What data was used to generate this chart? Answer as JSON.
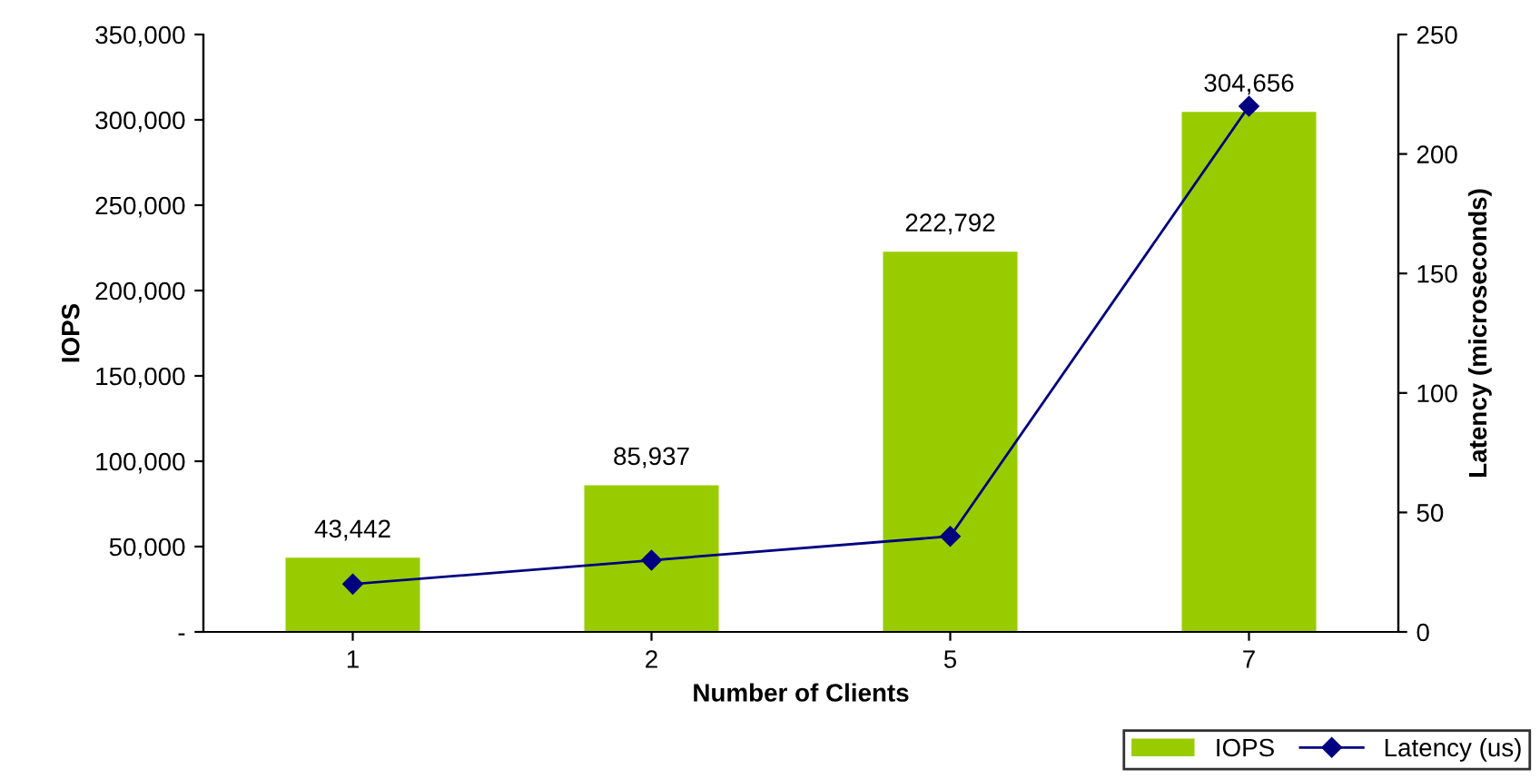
{
  "chart_data": {
    "type": "bar",
    "xlabel": "Number of Clients",
    "ylabel": "IOPS",
    "y2label": "Latency (microseconds)",
    "categories": [
      "1",
      "2",
      "5",
      "7"
    ],
    "series": [
      {
        "name": "IOPS",
        "color": "#99cc00",
        "values": [
          43442,
          85937,
          222792,
          304656
        ],
        "value_labels": [
          "43,442",
          "85,937",
          "222,792",
          "304,656"
        ]
      },
      {
        "name": "Latency (us)",
        "type": "line",
        "axis": "y2",
        "color": "#000080",
        "values": [
          20,
          30,
          40,
          220
        ],
        "marker": "diamond",
        "line_style": "solid"
      }
    ],
    "ylim": [
      0,
      350000
    ],
    "yticks": [
      {
        "value": 0,
        "label": "-"
      },
      {
        "value": 50000,
        "label": "50,000"
      },
      {
        "value": 100000,
        "label": "100,000"
      },
      {
        "value": 150000,
        "label": "150,000"
      },
      {
        "value": 200000,
        "label": "200,000"
      },
      {
        "value": 250000,
        "label": "250,000"
      },
      {
        "value": 300000,
        "label": "300,000"
      },
      {
        "value": 350000,
        "label": "350,000"
      }
    ],
    "y2lim": [
      0,
      250
    ],
    "y2ticks": [
      0,
      50,
      100,
      150,
      200,
      250
    ],
    "grid": false,
    "legend": "bottom right"
  }
}
